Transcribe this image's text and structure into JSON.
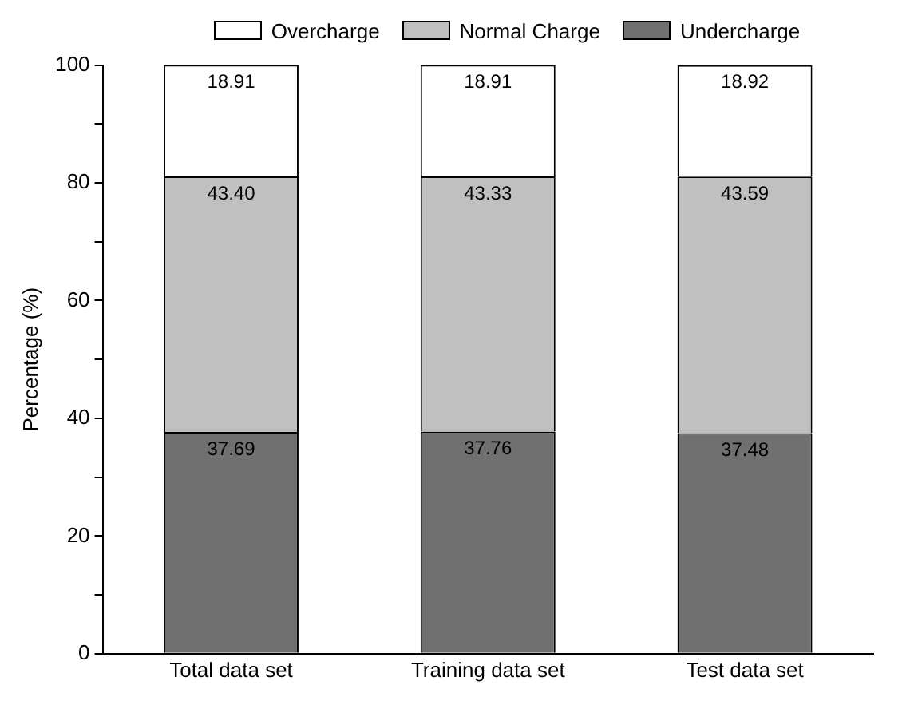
{
  "chart_data": {
    "type": "bar",
    "stacked": true,
    "ylabel": "Percentage (%)",
    "categories": [
      "Total data set",
      "Training data set",
      "Test data set"
    ],
    "series": [
      {
        "name": "Undercharge",
        "color": "#707070",
        "values": [
          37.69,
          37.76,
          37.48
        ]
      },
      {
        "name": "Normal Charge",
        "color": "#c0c0c0",
        "values": [
          43.4,
          43.33,
          43.59
        ]
      },
      {
        "name": "Overcharge",
        "color": "#ffffff",
        "values": [
          18.91,
          18.91,
          18.92
        ]
      }
    ],
    "value_labels": [
      [
        "37.69",
        "37.76",
        "37.48"
      ],
      [
        "43.40",
        "43.33",
        "43.59"
      ],
      [
        "18.91",
        "18.91",
        "18.92"
      ]
    ],
    "ylim": [
      0,
      100
    ],
    "yticks": [
      0,
      {
        "value": 10,
        "label": null
      },
      20,
      {
        "value": 30,
        "label": null
      },
      40,
      {
        "value": 50,
        "label": null
      },
      60,
      {
        "value": 70,
        "label": null
      },
      80,
      {
        "value": 90,
        "label": null
      },
      100
    ],
    "legend": "top",
    "grid": false
  }
}
